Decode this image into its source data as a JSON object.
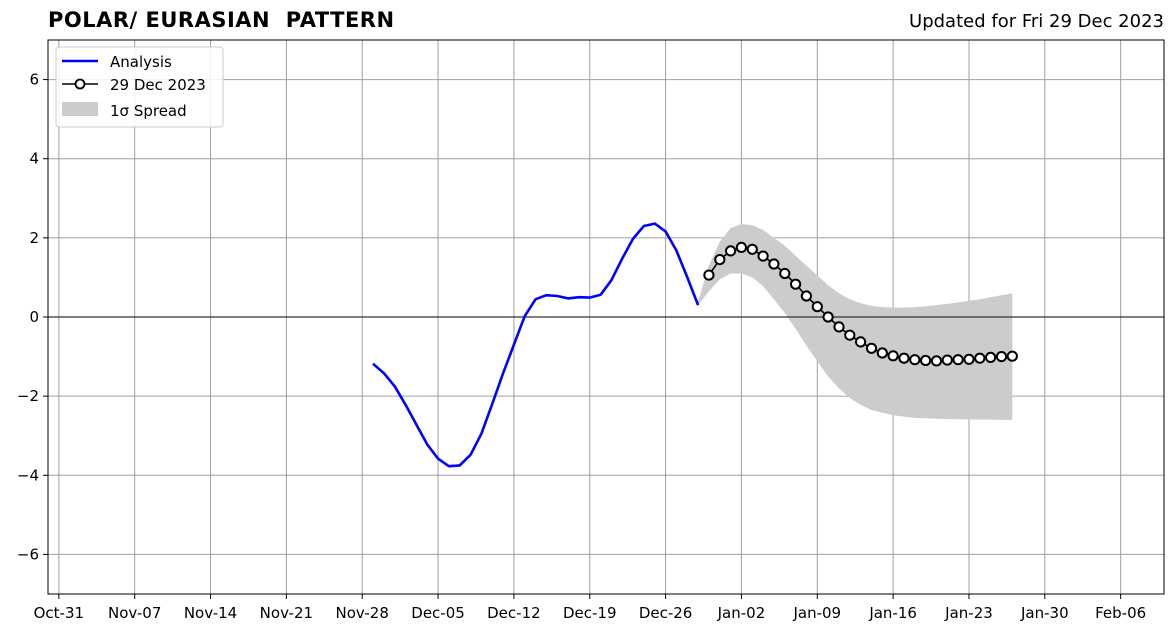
{
  "header": {
    "title": "POLAR/ EURASIAN  PATTERN",
    "updated": "Updated for Fri 29 Dec 2023"
  },
  "legend": {
    "analysis": "Analysis",
    "forecast": "29 Dec 2023",
    "spread": "1σ Spread"
  },
  "colors": {
    "analysis": "#0000ff",
    "forecast_line": "#000000",
    "spread": "#cccccc",
    "grid": "#a0a0a0"
  },
  "chart_data": {
    "type": "line",
    "title": "POLAR/ EURASIAN  PATTERN",
    "xlabel": "",
    "ylabel": "",
    "x_tick_labels": [
      "Oct-31",
      "Nov-07",
      "Nov-14",
      "Nov-21",
      "Nov-28",
      "Dec-05",
      "Dec-12",
      "Dec-19",
      "Dec-26",
      "Jan-02",
      "Jan-09",
      "Jan-16",
      "Jan-23",
      "Jan-30",
      "Feb-06"
    ],
    "y_ticks": [
      -6,
      -4,
      -2,
      0,
      2,
      4,
      6
    ],
    "xlim": [
      "2023-10-30",
      "2024-02-10"
    ],
    "ylim": [
      -7,
      7
    ],
    "grid": true,
    "legend_position": "top-left",
    "series": [
      {
        "name": "Analysis",
        "style": "line",
        "x": [
          "2023-11-29",
          "2023-11-30",
          "2023-12-01",
          "2023-12-02",
          "2023-12-03",
          "2023-12-04",
          "2023-12-05",
          "2023-12-06",
          "2023-12-07",
          "2023-12-08",
          "2023-12-09",
          "2023-12-10",
          "2023-12-11",
          "2023-12-12",
          "2023-12-13",
          "2023-12-14",
          "2023-12-15",
          "2023-12-16",
          "2023-12-17",
          "2023-12-18",
          "2023-12-19",
          "2023-12-20",
          "2023-12-21",
          "2023-12-22",
          "2023-12-23",
          "2023-12-24",
          "2023-12-25",
          "2023-12-26",
          "2023-12-27",
          "2023-12-28",
          "2023-12-29"
        ],
        "y": [
          -1.18,
          -1.42,
          -1.75,
          -2.22,
          -2.72,
          -3.22,
          -3.58,
          -3.77,
          -3.75,
          -3.48,
          -2.95,
          -2.2,
          -1.42,
          -0.7,
          0.02,
          0.45,
          0.55,
          0.53,
          0.47,
          0.5,
          0.49,
          0.56,
          0.93,
          1.48,
          1.98,
          2.3,
          2.36,
          2.16,
          1.68,
          1.0,
          0.3
        ]
      },
      {
        "name": "29 Dec 2023",
        "style": "line-marker",
        "x": [
          "2023-12-30",
          "2023-12-31",
          "2024-01-01",
          "2024-01-02",
          "2024-01-03",
          "2024-01-04",
          "2024-01-05",
          "2024-01-06",
          "2024-01-07",
          "2024-01-08",
          "2024-01-09",
          "2024-01-10",
          "2024-01-11",
          "2024-01-12",
          "2024-01-13",
          "2024-01-14",
          "2024-01-15",
          "2024-01-16",
          "2024-01-17",
          "2024-01-18",
          "2024-01-19",
          "2024-01-20",
          "2024-01-21",
          "2024-01-22",
          "2024-01-23",
          "2024-01-24",
          "2024-01-25",
          "2024-01-26",
          "2024-01-27"
        ],
        "y": [
          1.06,
          1.45,
          1.67,
          1.76,
          1.71,
          1.54,
          1.34,
          1.1,
          0.83,
          0.53,
          0.26,
          0.0,
          -0.25,
          -0.46,
          -0.63,
          -0.79,
          -0.91,
          -0.98,
          -1.04,
          -1.08,
          -1.1,
          -1.11,
          -1.09,
          -1.08,
          -1.07,
          -1.04,
          -1.02,
          -1.0,
          -0.99
        ]
      },
      {
        "name": "1σ Spread",
        "style": "band",
        "x": [
          "2023-12-29",
          "2023-12-30",
          "2023-12-31",
          "2024-01-01",
          "2024-01-02",
          "2024-01-03",
          "2024-01-04",
          "2024-01-05",
          "2024-01-06",
          "2024-01-07",
          "2024-01-08",
          "2024-01-09",
          "2024-01-10",
          "2024-01-11",
          "2024-01-12",
          "2024-01-13",
          "2024-01-14",
          "2024-01-15",
          "2024-01-16",
          "2024-01-17",
          "2024-01-18",
          "2024-01-19",
          "2024-01-20",
          "2024-01-21",
          "2024-01-22",
          "2024-01-23",
          "2024-01-24",
          "2024-01-25",
          "2024-01-26",
          "2024-01-27"
        ],
        "upper": [
          0.4,
          1.3,
          1.9,
          2.25,
          2.35,
          2.32,
          2.2,
          2.0,
          1.8,
          1.55,
          1.3,
          1.05,
          0.8,
          0.6,
          0.45,
          0.35,
          0.28,
          0.25,
          0.24,
          0.24,
          0.25,
          0.27,
          0.3,
          0.33,
          0.37,
          0.41,
          0.45,
          0.5,
          0.55,
          0.6
        ],
        "lower": [
          0.3,
          0.65,
          0.95,
          1.1,
          1.1,
          1.0,
          0.78,
          0.45,
          0.1,
          -0.3,
          -0.72,
          -1.12,
          -1.5,
          -1.8,
          -2.05,
          -2.22,
          -2.35,
          -2.42,
          -2.48,
          -2.52,
          -2.55,
          -2.56,
          -2.57,
          -2.58,
          -2.58,
          -2.59,
          -2.59,
          -2.59,
          -2.6,
          -2.6
        ]
      }
    ]
  }
}
